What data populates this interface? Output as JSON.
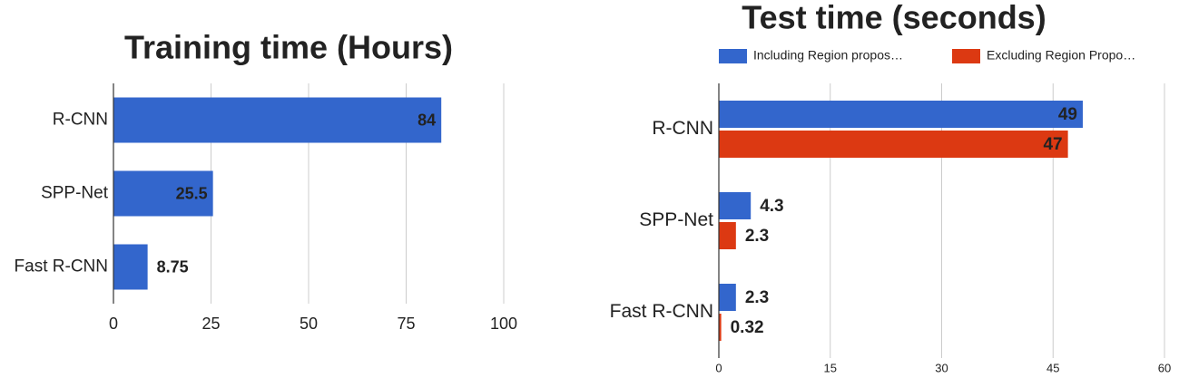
{
  "chart_data": [
    {
      "type": "bar",
      "orientation": "horizontal",
      "title": "Training time (Hours)",
      "categories": [
        "R-CNN",
        "SPP-Net",
        "Fast R-CNN"
      ],
      "values": [
        84,
        25.5,
        8.75
      ],
      "color": "#3366cc",
      "xlim": [
        0,
        100
      ],
      "xticks": [
        0,
        25,
        50,
        75,
        100
      ],
      "grid": true
    },
    {
      "type": "bar",
      "orientation": "horizontal",
      "title": "Test time (seconds)",
      "categories": [
        "R-CNN",
        "SPP-Net",
        "Fast R-CNN"
      ],
      "series": [
        {
          "name": "Including Region propos…",
          "color": "#3366cc",
          "values": [
            49,
            4.3,
            2.3
          ]
        },
        {
          "name": "Excluding Region Propo…",
          "color": "#dc3912",
          "values": [
            47,
            2.3,
            0.32
          ]
        }
      ],
      "xlim": [
        0,
        60
      ],
      "xticks": [
        0,
        15,
        30,
        45,
        60
      ],
      "grid": true,
      "legend": "top"
    }
  ]
}
